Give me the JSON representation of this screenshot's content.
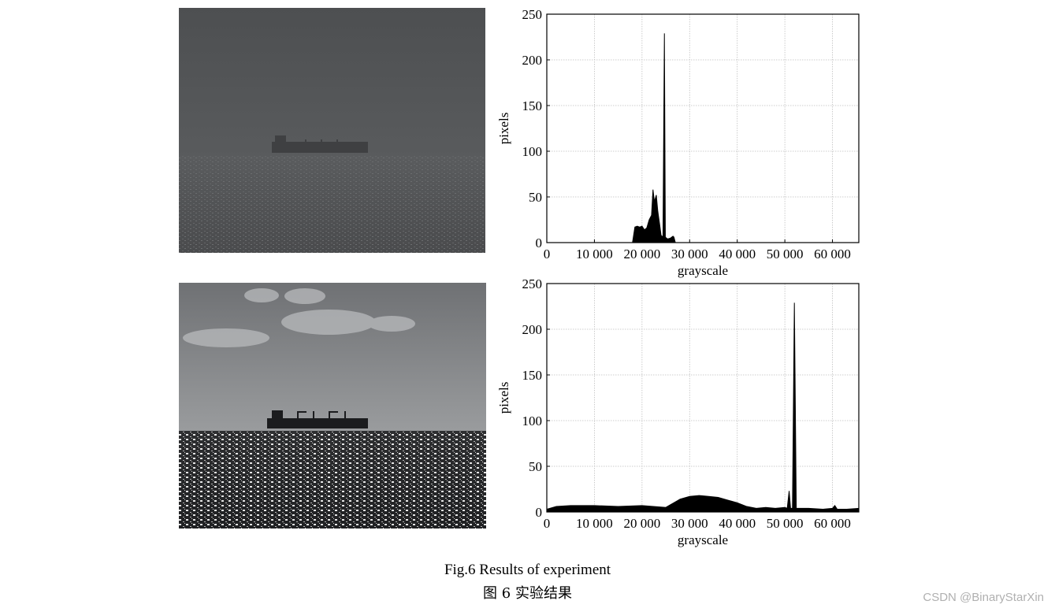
{
  "figure": {
    "caption_en": "Fig.6 Results of experiment",
    "caption_zh": "图 6 实验结果"
  },
  "watermark": "CSDN @BinaryStarXin",
  "images": [
    {
      "description": "low-contrast infrared sea image with ship on horizon"
    },
    {
      "description": "enhanced infrared sea image with ship, clouds and bright sea glints"
    }
  ],
  "chart_data": [
    {
      "type": "area",
      "xlabel": "grayscale",
      "ylabel": "pixels",
      "xlim": [
        0,
        65535
      ],
      "ylim": [
        0,
        250
      ],
      "x_ticks": [
        0,
        10000,
        20000,
        30000,
        40000,
        50000,
        60000
      ],
      "x_tick_labels": [
        "0",
        "10 000",
        "20 000",
        "30 000",
        "40 000",
        "50 000",
        "60 000"
      ],
      "y_ticks": [
        0,
        50,
        100,
        150,
        200,
        250
      ],
      "y_tick_labels": [
        "0",
        "50",
        "100",
        "150",
        "200",
        "250"
      ],
      "grid": true,
      "series": [
        {
          "x": [
            0,
            18000,
            18500,
            19000,
            19500,
            20000,
            20500,
            21000,
            21500,
            22000,
            22300,
            22600,
            23000,
            23300,
            23700,
            24000,
            24400,
            24700,
            24900,
            25100,
            25400,
            26000,
            26500,
            26700,
            27000,
            65535
          ],
          "y": [
            0,
            0,
            17,
            18,
            17,
            18,
            14,
            16,
            25,
            30,
            58,
            45,
            52,
            35,
            20,
            8,
            6,
            229,
            6,
            5,
            4,
            5,
            7,
            6,
            0,
            0
          ]
        }
      ]
    },
    {
      "type": "area",
      "xlabel": "grayscale",
      "ylabel": "pixels",
      "xlim": [
        0,
        65535
      ],
      "ylim": [
        0,
        250
      ],
      "x_ticks": [
        0,
        10000,
        20000,
        30000,
        40000,
        50000,
        60000
      ],
      "x_tick_labels": [
        "0",
        "10 000",
        "20 000",
        "30 000",
        "40 000",
        "50 000",
        "60 000"
      ],
      "y_ticks": [
        0,
        50,
        100,
        150,
        200,
        250
      ],
      "y_tick_labels": [
        "0",
        "50",
        "100",
        "150",
        "200",
        "250"
      ],
      "grid": true,
      "series": [
        {
          "x": [
            0,
            2000,
            5000,
            10000,
            15000,
            20000,
            25000,
            26000,
            28000,
            30000,
            32000,
            34000,
            36000,
            38000,
            40000,
            42000,
            44000,
            46000,
            48000,
            50000,
            50500,
            50900,
            51200,
            51600,
            52000,
            52400,
            52700,
            53000,
            55000,
            58000,
            60000,
            60500,
            61000,
            63000,
            65535
          ],
          "y": [
            3,
            6,
            7,
            7,
            6,
            7,
            5,
            8,
            14,
            17,
            18,
            17,
            16,
            13,
            10,
            6,
            4,
            5,
            4,
            5,
            4,
            23,
            4,
            4,
            229,
            4,
            4,
            4,
            4,
            3,
            4,
            7,
            3,
            3,
            4
          ]
        }
      ]
    }
  ]
}
